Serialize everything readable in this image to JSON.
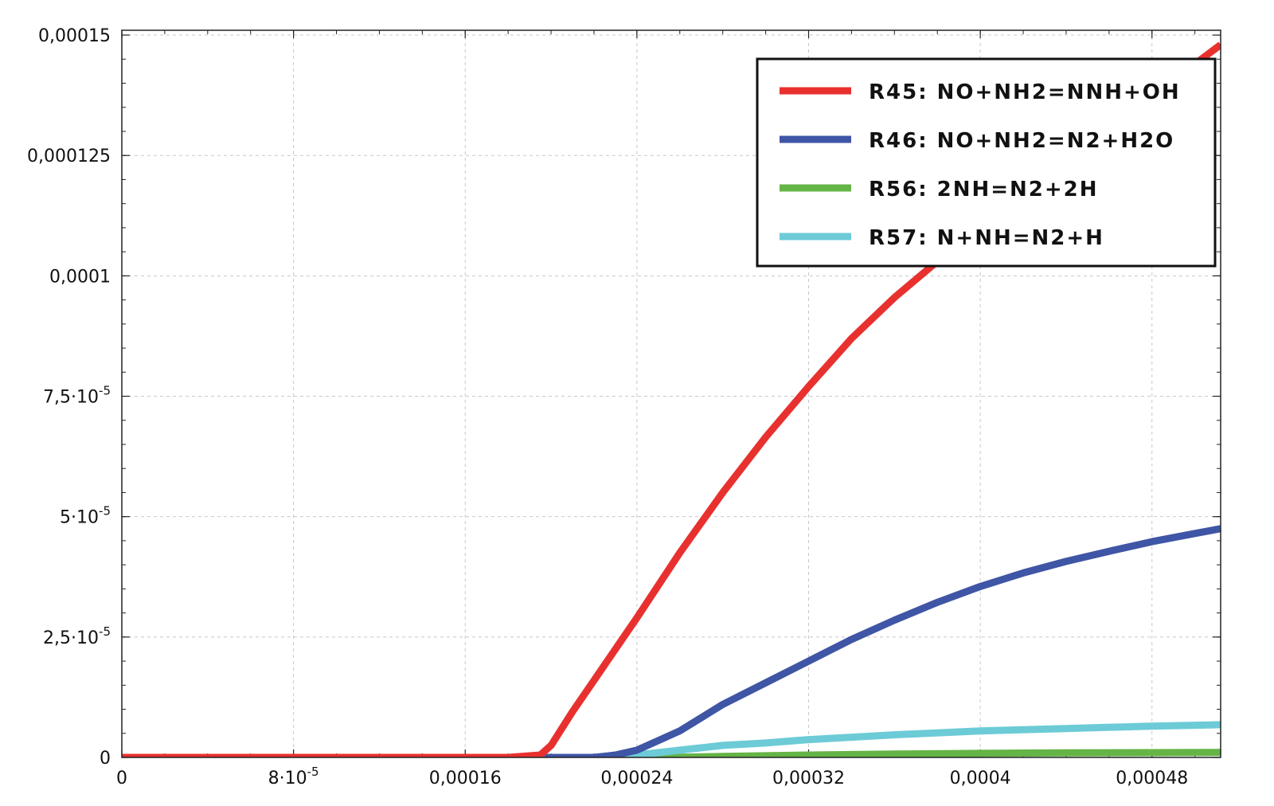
{
  "chart_data": {
    "type": "line",
    "title": "",
    "xlabel": "",
    "ylabel": "",
    "xlim": [
      0,
      0.000512
    ],
    "ylim": [
      0,
      0.000151
    ],
    "grid": true,
    "legend_position": "top-right",
    "x_ticks": [
      {
        "value": 0,
        "label": "0",
        "exp": ""
      },
      {
        "value": 8e-05,
        "label": "8·10",
        "exp": "-5"
      },
      {
        "value": 0.00016,
        "label": "0,00016",
        "exp": ""
      },
      {
        "value": 0.00024,
        "label": "0,00024",
        "exp": ""
      },
      {
        "value": 0.00032,
        "label": "0,00032",
        "exp": ""
      },
      {
        "value": 0.0004,
        "label": "0,0004",
        "exp": ""
      },
      {
        "value": 0.00048,
        "label": "0,00048",
        "exp": ""
      }
    ],
    "y_ticks": [
      {
        "value": 0,
        "label": "0",
        "exp": ""
      },
      {
        "value": 2.5e-05,
        "label": "2,5·10",
        "exp": "-5"
      },
      {
        "value": 5e-05,
        "label": "5·10",
        "exp": "-5"
      },
      {
        "value": 7.5e-05,
        "label": "7,5·10",
        "exp": "-5"
      },
      {
        "value": 0.0001,
        "label": "0,0001",
        "exp": ""
      },
      {
        "value": 0.000125,
        "label": "0,000125",
        "exp": ""
      },
      {
        "value": 0.00015,
        "label": "0,00015",
        "exp": ""
      }
    ],
    "series": [
      {
        "name": "R45: NO+NH2=NNH+OH",
        "color": "#e8312f",
        "x": [
          0,
          0.00018,
          0.000195,
          0.0002,
          0.00021,
          0.00022,
          0.00024,
          0.00026,
          0.00028,
          0.0003,
          0.00032,
          0.00034,
          0.00036,
          0.00038,
          0.0004,
          0.00042,
          0.00044,
          0.00046,
          0.00048,
          0.0005,
          0.000512
        ],
        "y": [
          0,
          0,
          5e-07,
          2.5e-06,
          9.5e-06,
          1.6e-05,
          2.9e-05,
          4.25e-05,
          5.5e-05,
          6.65e-05,
          7.7e-05,
          8.7e-05,
          9.55e-05,
          0.000103,
          0.0001105,
          0.000118,
          0.000125,
          0.0001315,
          0.000138,
          0.000144,
          0.000148
        ]
      },
      {
        "name": "R46: NO+NH2=N2+H2O",
        "color": "#3f55a5",
        "x": [
          0,
          0.00022,
          0.00023,
          0.00024,
          0.00025,
          0.00026,
          0.00028,
          0.0003,
          0.00032,
          0.00034,
          0.00036,
          0.00038,
          0.0004,
          0.00042,
          0.00044,
          0.00046,
          0.00048,
          0.0005,
          0.000512
        ],
        "y": [
          0,
          0,
          5e-07,
          1.5e-06,
          3.5e-06,
          5.5e-06,
          1.1e-05,
          1.55e-05,
          2e-05,
          2.45e-05,
          2.85e-05,
          3.22e-05,
          3.55e-05,
          3.83e-05,
          4.07e-05,
          4.28e-05,
          4.48e-05,
          4.65e-05,
          4.75e-05
        ]
      },
      {
        "name": "R56: 2NH=N2+2H",
        "color": "#64b446",
        "x": [
          0,
          0.00024,
          0.00026,
          0.00028,
          0.0003,
          0.00032,
          0.00036,
          0.0004,
          0.00044,
          0.00048,
          0.000512
        ],
        "y": [
          0,
          0,
          5e-08,
          2e-07,
          3.5e-07,
          5e-07,
          7e-07,
          8.5e-07,
          9.5e-07,
          1e-06,
          1.05e-06
        ]
      },
      {
        "name": "R57: N+NH=N2+H",
        "color": "#6ccbd6",
        "x": [
          0,
          0.00022,
          0.00024,
          0.00026,
          0.00028,
          0.0003,
          0.00032,
          0.00036,
          0.0004,
          0.00044,
          0.00048,
          0.000512
        ],
        "y": [
          0,
          0,
          5e-07,
          1.5e-06,
          2.5e-06,
          3e-06,
          3.7e-06,
          4.7e-06,
          5.5e-06,
          6e-06,
          6.5e-06,
          6.8e-06
        ]
      }
    ]
  }
}
